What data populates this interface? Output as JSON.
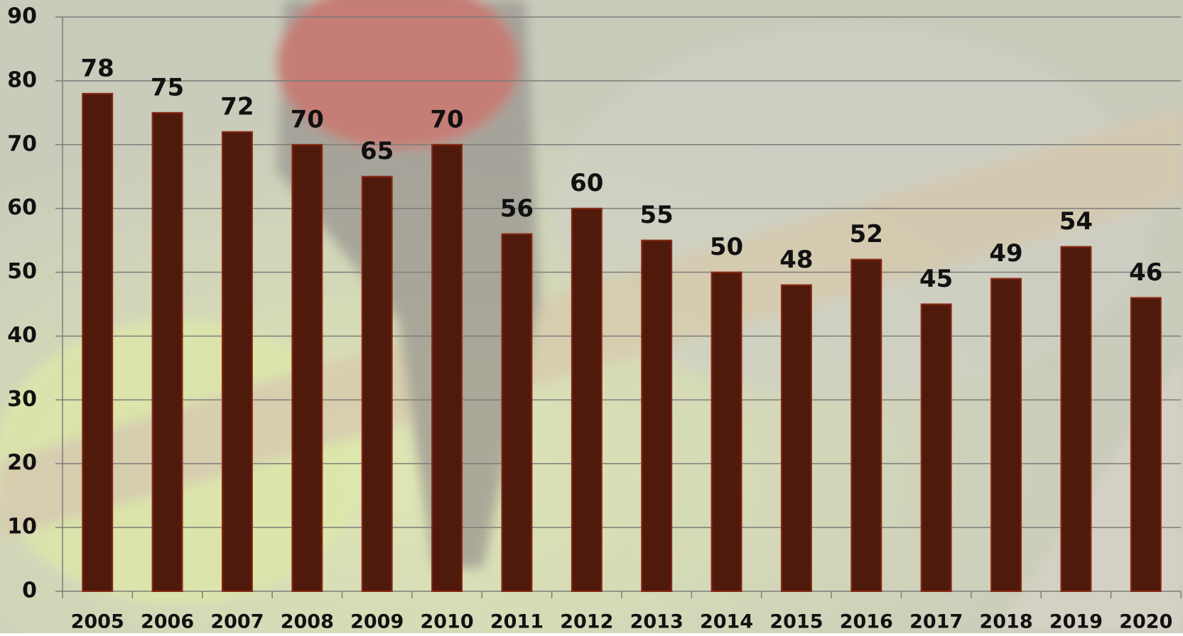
{
  "chart_data": {
    "type": "bar",
    "categories": [
      "2005",
      "2006",
      "2007",
      "2008",
      "2009",
      "2010",
      "2011",
      "2012",
      "2013",
      "2014",
      "2015",
      "2016",
      "2017",
      "2018",
      "2019",
      "2020"
    ],
    "values": [
      78,
      75,
      72,
      70,
      65,
      70,
      56,
      60,
      55,
      50,
      48,
      52,
      45,
      49,
      54,
      46
    ],
    "color": "#4f1a0c",
    "ylim": [
      0,
      90
    ],
    "yticks": [
      0,
      10,
      20,
      30,
      40,
      50,
      60,
      70,
      80,
      90
    ],
    "grid": true
  }
}
